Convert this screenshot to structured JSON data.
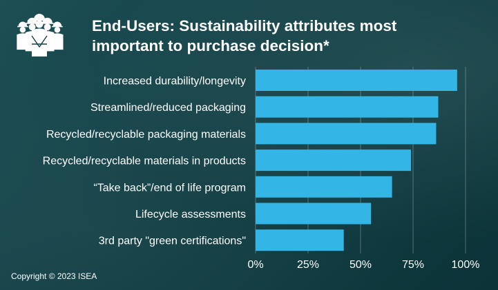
{
  "header": {
    "title_line1": "End-Users: Sustainability attributes most",
    "title_line2": "important to purchase decision*",
    "icon": "workers-group-icon"
  },
  "chart_data": {
    "type": "bar",
    "orientation": "horizontal",
    "categories": [
      "Increased durability/longevity",
      "Streamlined/reduced packaging",
      "Recycled/recyclable packaging materials",
      "Recycled/recyclable materials in products",
      "“Take back”/end of life program",
      "Lifecycle assessments",
      "3rd party \"green certifications\""
    ],
    "values": [
      96,
      87,
      86,
      74,
      65,
      55,
      42
    ],
    "xlim": [
      0,
      100
    ],
    "xticks": [
      "0%",
      "25%",
      "50%",
      "75%",
      "100%"
    ],
    "xtick_values": [
      0,
      25,
      50,
      75,
      100
    ],
    "grid": true,
    "bar_color": "#33b5e5"
  },
  "footer": {
    "copyright": "Copyright  © 2023 ISEA"
  }
}
